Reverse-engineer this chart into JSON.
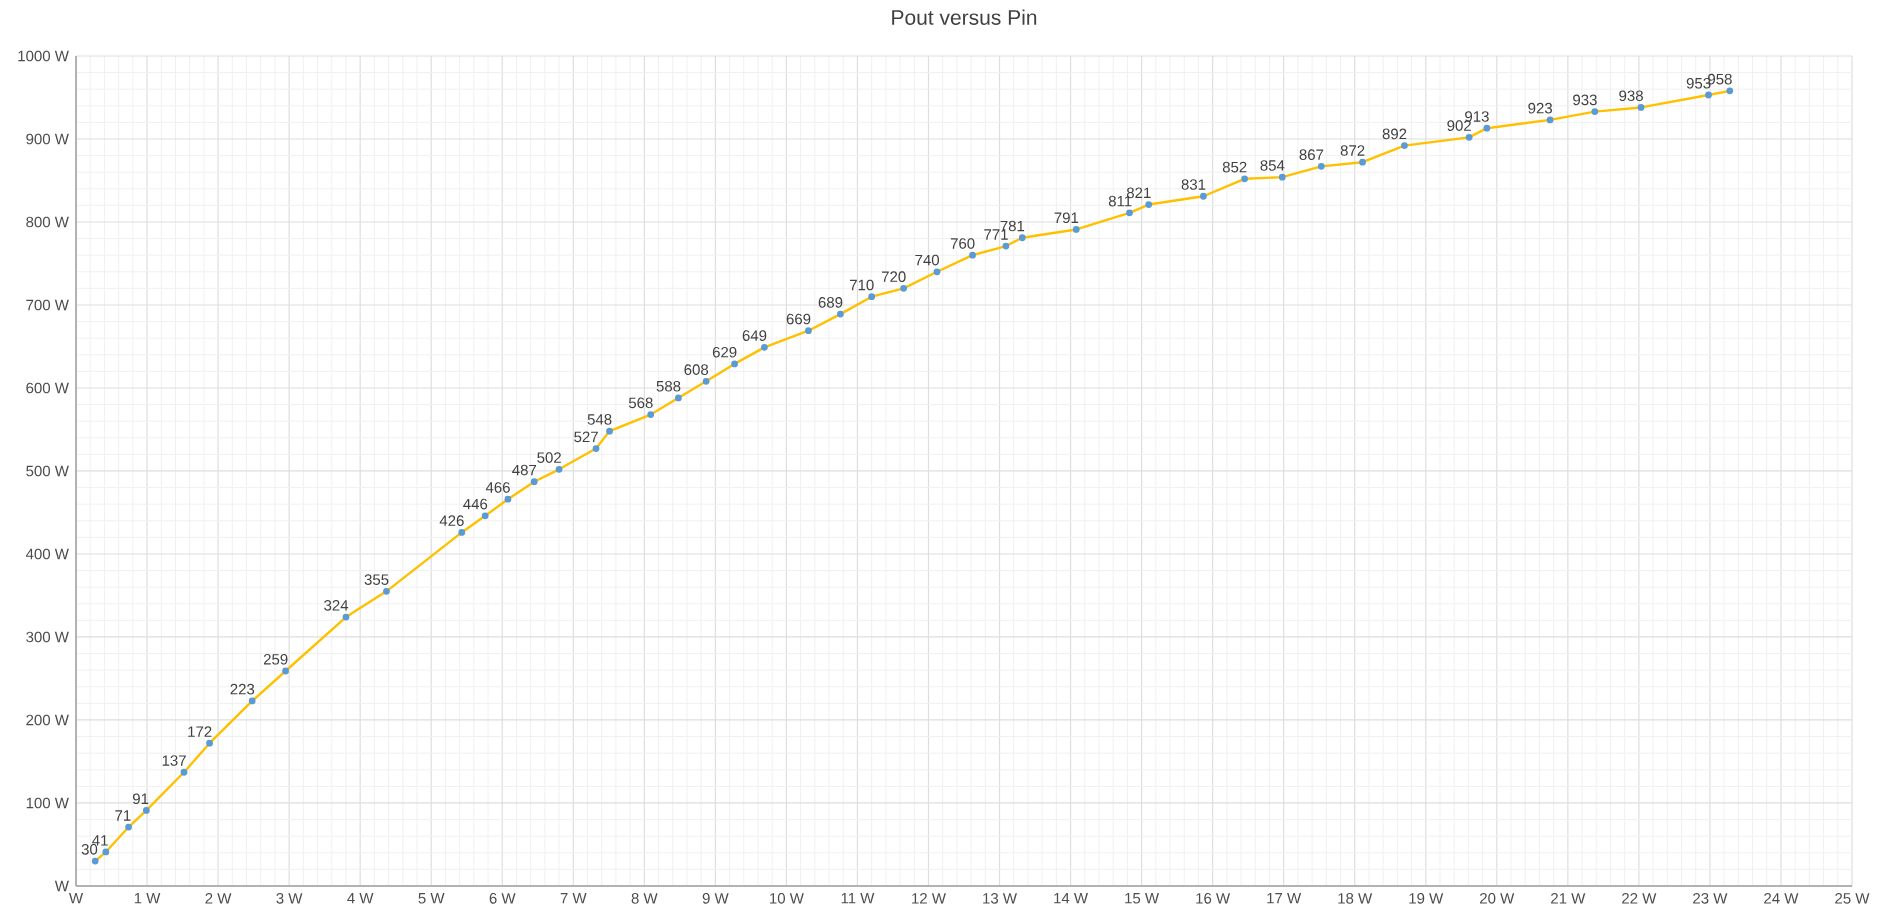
{
  "chart_data": {
    "type": "line",
    "title": "Pout versus Pin",
    "x": [
      0.27,
      0.42,
      0.74,
      0.99,
      1.52,
      1.88,
      2.48,
      2.95,
      3.8,
      4.37,
      5.43,
      5.76,
      6.08,
      6.45,
      6.8,
      7.32,
      7.51,
      8.09,
      8.48,
      8.87,
      9.27,
      9.69,
      10.31,
      10.76,
      11.2,
      11.65,
      12.12,
      12.62,
      13.09,
      13.32,
      14.08,
      14.83,
      15.1,
      15.87,
      16.45,
      16.98,
      17.53,
      18.11,
      18.7,
      19.61,
      19.86,
      20.75,
      21.38,
      22.03,
      22.98,
      23.28
    ],
    "series": [
      {
        "color": "#ffc000",
        "values": [
          30,
          41,
          71,
          91,
          137,
          172,
          223,
          259,
          324,
          355,
          426,
          446,
          466,
          487,
          502,
          527,
          548,
          568,
          588,
          608,
          629,
          649,
          669,
          689,
          710,
          720,
          740,
          760,
          771,
          781,
          791,
          811,
          821,
          831,
          852,
          854,
          867,
          872,
          892,
          902,
          913,
          923,
          933,
          938,
          953,
          958
        ]
      }
    ],
    "xlim": [
      0,
      25
    ],
    "ylim": [
      0,
      1000
    ],
    "xticks": [
      {
        "value": 0,
        "label": "W"
      },
      {
        "value": 1,
        "label": "1 W"
      },
      {
        "value": 2,
        "label": "2 W"
      },
      {
        "value": 3,
        "label": "3 W"
      },
      {
        "value": 4,
        "label": "4 W"
      },
      {
        "value": 5,
        "label": "5 W"
      },
      {
        "value": 6,
        "label": "6 W"
      },
      {
        "value": 7,
        "label": "7 W"
      },
      {
        "value": 8,
        "label": "8 W"
      },
      {
        "value": 9,
        "label": "9 W"
      },
      {
        "value": 10,
        "label": "10 W"
      },
      {
        "value": 11,
        "label": "11 W"
      },
      {
        "value": 12,
        "label": "12 W"
      },
      {
        "value": 13,
        "label": "13 W"
      },
      {
        "value": 14,
        "label": "14 W"
      },
      {
        "value": 15,
        "label": "15 W"
      },
      {
        "value": 16,
        "label": "16 W"
      },
      {
        "value": 17,
        "label": "17 W"
      },
      {
        "value": 18,
        "label": "18 W"
      },
      {
        "value": 19,
        "label": "19 W"
      },
      {
        "value": 20,
        "label": "20 W"
      },
      {
        "value": 21,
        "label": "21 W"
      },
      {
        "value": 22,
        "label": "22 W"
      },
      {
        "value": 23,
        "label": "23 W"
      },
      {
        "value": 24,
        "label": "24 W"
      },
      {
        "value": 25,
        "label": "25 W"
      }
    ],
    "yticks": [
      {
        "value": 0,
        "label": "W"
      },
      {
        "value": 100,
        "label": "100 W"
      },
      {
        "value": 200,
        "label": "200 W"
      },
      {
        "value": 300,
        "label": "300 W"
      },
      {
        "value": 400,
        "label": "400 W"
      },
      {
        "value": 500,
        "label": "500 W"
      },
      {
        "value": 600,
        "label": "600 W"
      },
      {
        "value": 700,
        "label": "700 W"
      },
      {
        "value": 800,
        "label": "800 W"
      },
      {
        "value": 900,
        "label": "900 W"
      },
      {
        "value": 1000,
        "label": "1000 W"
      }
    ],
    "grid": true,
    "marker": "circle",
    "line_style": "solid",
    "data_labels": true
  }
}
